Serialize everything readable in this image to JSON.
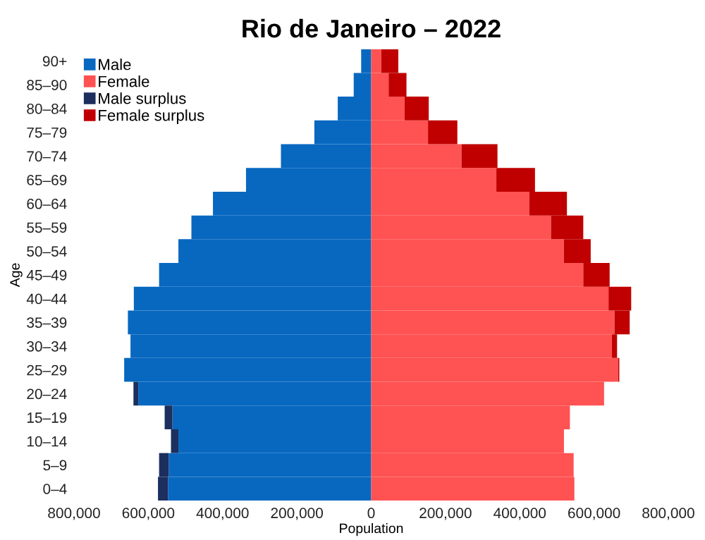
{
  "chart_data": {
    "type": "bar",
    "orientation": "horizontal",
    "stacked": true,
    "title": "Rio de Janeiro – 2022",
    "xlabel": "Population",
    "ylabel": "Age",
    "categories": [
      "90+",
      "85–90",
      "80–84",
      "75–79",
      "70–74",
      "65–69",
      "60–64",
      "55–59",
      "50–54",
      "45–49",
      "40–44",
      "35–39",
      "30–34",
      "25–29",
      "20–24",
      "15–19",
      "10–14",
      "5–9",
      "0–4"
    ],
    "series": [
      {
        "name": "Male",
        "color": "#0868c0",
        "values": [
          -27000,
          -47000,
          -90000,
          -153000,
          -243000,
          -337000,
          -426000,
          -484000,
          -519000,
          -571000,
          -639000,
          -655000,
          -648000,
          -665000,
          -627000,
          -535000,
          -519000,
          -545000,
          -547000
        ]
      },
      {
        "name": "Female",
        "color": "#ff5252",
        "values": [
          27000,
          47000,
          90000,
          153000,
          243000,
          337000,
          426000,
          484000,
          519000,
          571000,
          639000,
          655000,
          648000,
          665000,
          627000,
          535000,
          519000,
          545000,
          547000
        ]
      },
      {
        "name": "Male surplus",
        "color": "#1c2f5e",
        "values": [
          0,
          0,
          0,
          0,
          0,
          0,
          0,
          0,
          0,
          0,
          0,
          0,
          0,
          0,
          -13000,
          -21000,
          -20000,
          -26000,
          -27000
        ]
      },
      {
        "name": "Female surplus",
        "color": "#c00000",
        "values": [
          46000,
          48000,
          65000,
          79000,
          97000,
          104000,
          101000,
          87000,
          72000,
          71000,
          61000,
          41000,
          14000,
          3000,
          0,
          0,
          0,
          0,
          0
        ]
      }
    ],
    "xlim": [
      -800000,
      800000
    ],
    "xticks": [
      {
        "value": -800000,
        "label": "800,000"
      },
      {
        "value": -600000,
        "label": "600,000"
      },
      {
        "value": -400000,
        "label": "400,000"
      },
      {
        "value": -200000,
        "label": "200,000"
      },
      0,
      {
        "value": 200000,
        "label": "200,000"
      },
      {
        "value": 400000,
        "label": "400,000"
      },
      {
        "value": 600000,
        "label": "600,000"
      },
      {
        "value": 800000,
        "label": "800,000"
      }
    ],
    "grid": false,
    "legend": "top left"
  }
}
